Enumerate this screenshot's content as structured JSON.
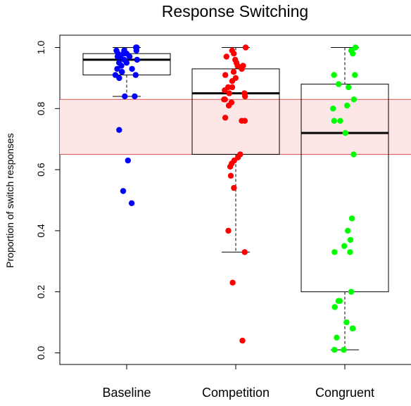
{
  "chart_data": {
    "type": "boxplot",
    "title": "Response Switching",
    "xlabel": "",
    "ylabel": "Proportion of switch responses",
    "ylim": [
      0,
      1
    ],
    "yticks": [
      "0.0",
      "0.2",
      "0.4",
      "0.6",
      "0.8",
      "1.0"
    ],
    "categories": [
      "Baseline",
      "Competition",
      "Congruent"
    ],
    "band": {
      "low": 0.65,
      "high": 0.83,
      "fill": "#fde6e6",
      "stroke": "#d9534f"
    },
    "series": [
      {
        "category": "Baseline",
        "color": "#0000ff",
        "box": {
          "lower_whisker": 0.84,
          "q1": 0.91,
          "median": 0.96,
          "q3": 0.98,
          "upper_whisker": 1.0
        },
        "points": [
          1.0,
          1.0,
          0.99,
          0.99,
          0.99,
          0.98,
          0.98,
          0.98,
          0.97,
          0.97,
          0.97,
          0.96,
          0.96,
          0.95,
          0.95,
          0.94,
          0.93,
          0.93,
          0.92,
          0.92,
          0.91,
          0.91,
          0.9,
          0.84,
          0.84,
          0.73,
          0.63,
          0.53,
          0.49
        ]
      },
      {
        "category": "Competition",
        "color": "#ff0000",
        "box": {
          "lower_whisker": 0.33,
          "q1": 0.65,
          "median": 0.85,
          "q3": 0.93,
          "upper_whisker": 1.0
        },
        "points": [
          1.0,
          0.99,
          0.98,
          0.97,
          0.96,
          0.95,
          0.94,
          0.94,
          0.93,
          0.92,
          0.91,
          0.9,
          0.89,
          0.87,
          0.87,
          0.86,
          0.85,
          0.85,
          0.84,
          0.83,
          0.83,
          0.82,
          0.81,
          0.77,
          0.76,
          0.76,
          0.65,
          0.64,
          0.63,
          0.62,
          0.61,
          0.58,
          0.54,
          0.4,
          0.33,
          0.23,
          0.04
        ]
      },
      {
        "category": "Congruent",
        "color": "#00ff00",
        "box": {
          "lower_whisker": 0.01,
          "q1": 0.2,
          "median": 0.72,
          "q3": 0.88,
          "upper_whisker": 1.0
        },
        "points": [
          1.0,
          0.99,
          0.99,
          0.98,
          0.91,
          0.91,
          0.88,
          0.87,
          0.83,
          0.81,
          0.8,
          0.76,
          0.76,
          0.72,
          0.65,
          0.44,
          0.4,
          0.37,
          0.35,
          0.33,
          0.33,
          0.2,
          0.17,
          0.17,
          0.15,
          0.1,
          0.08,
          0.08,
          0.05,
          0.01,
          0.01
        ]
      }
    ]
  }
}
